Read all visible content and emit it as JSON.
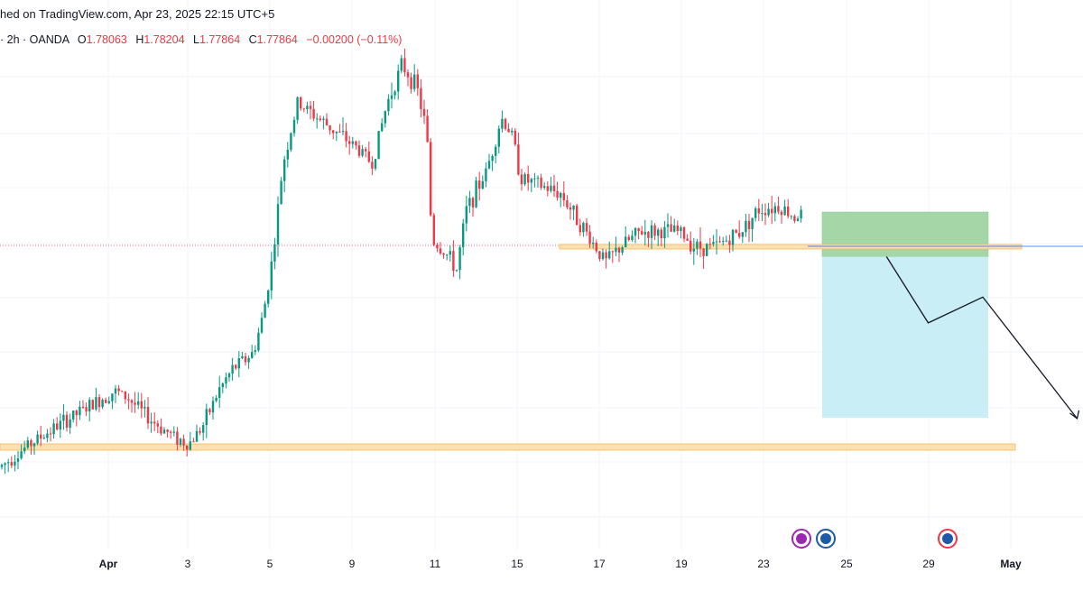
{
  "header": {
    "published_text": "hed on TradingView.com, Apr 23, 2025 22:15 UTC+5"
  },
  "legend": {
    "prefix": "· 2h · OANDA",
    "open_label": "O",
    "open_value": "1.78063",
    "high_label": "H",
    "high_value": "1.78204",
    "low_label": "L",
    "low_value": "1.77864",
    "close_label": "C",
    "close_value": "1.77864",
    "change_value": "−0.00200 (−0.11%)"
  },
  "colors": {
    "up": "#089981",
    "down": "#f23645",
    "profit_zone": "#a5d6a7",
    "loss_zone": "#c9eef5",
    "support_band": "#fce0b0",
    "support_border": "#f7b955",
    "grid": "#f0f3fa",
    "current_price_line": "#f23645",
    "entry_line": "#2962ff"
  },
  "icons": [
    "lightning-event-icon",
    "globe-event-icon",
    "globe-event-icon"
  ],
  "chart_data": {
    "type": "candlestick",
    "x_ticks": [
      {
        "label": "Apr",
        "bold": true
      },
      {
        "label": "3"
      },
      {
        "label": "5"
      },
      {
        "label": "9"
      },
      {
        "label": "11"
      },
      {
        "label": "15"
      },
      {
        "label": "17"
      },
      {
        "label": "19"
      },
      {
        "label": "23"
      },
      {
        "label": "25"
      },
      {
        "label": "29"
      },
      {
        "label": "May",
        "bold": true
      }
    ],
    "price_levels": {
      "last_price": 1.77864,
      "entry": 1.77864
    },
    "trend_path": [
      [
        0.0,
        1.64
      ],
      [
        0.03,
        1.655
      ],
      [
        0.06,
        1.668
      ],
      [
        0.09,
        1.68
      ],
      [
        0.115,
        1.69
      ],
      [
        0.13,
        1.685
      ],
      [
        0.145,
        1.675
      ],
      [
        0.16,
        1.667
      ],
      [
        0.175,
        1.66
      ],
      [
        0.19,
        1.655
      ],
      [
        0.205,
        1.668
      ],
      [
        0.22,
        1.69
      ],
      [
        0.235,
        1.705
      ],
      [
        0.255,
        1.715
      ],
      [
        0.265,
        1.74
      ],
      [
        0.275,
        1.78
      ],
      [
        0.285,
        1.84
      ],
      [
        0.3,
        1.88
      ],
      [
        0.32,
        1.87
      ],
      [
        0.34,
        1.86
      ],
      [
        0.36,
        1.85
      ],
      [
        0.375,
        1.84
      ],
      [
        0.39,
        1.88
      ],
      [
        0.405,
        1.905
      ],
      [
        0.42,
        1.89
      ],
      [
        0.43,
        1.86
      ],
      [
        0.435,
        1.79
      ],
      [
        0.45,
        1.78
      ],
      [
        0.46,
        1.77
      ],
      [
        0.47,
        1.81
      ],
      [
        0.49,
        1.835
      ],
      [
        0.505,
        1.87
      ],
      [
        0.515,
        1.86
      ],
      [
        0.525,
        1.83
      ],
      [
        0.545,
        1.825
      ],
      [
        0.565,
        1.82
      ],
      [
        0.585,
        1.8
      ],
      [
        0.6,
        1.785
      ],
      [
        0.61,
        1.775
      ],
      [
        0.625,
        1.785
      ],
      [
        0.645,
        1.795
      ],
      [
        0.665,
        1.795
      ],
      [
        0.685,
        1.795
      ],
      [
        0.7,
        1.785
      ],
      [
        0.72,
        1.785
      ],
      [
        0.745,
        1.795
      ],
      [
        0.765,
        1.81
      ],
      [
        0.785,
        1.812
      ],
      [
        0.8,
        1.805
      ],
      [
        0.82,
        1.81
      ],
      [
        0.835,
        1.812
      ],
      [
        0.85,
        1.795
      ],
      [
        0.865,
        1.785
      ],
      [
        0.88,
        1.778
      ],
      [
        0.89,
        1.779
      ]
    ],
    "projection": {
      "points": [
        [
          0.893,
          1.7786
        ],
        [
          0.935,
          1.735
        ],
        [
          0.99,
          1.752
        ],
        [
          1.085,
          1.672
        ]
      ],
      "profit_zone": {
        "from": 1.7786,
        "to": 1.808
      },
      "loss_zone": {
        "from": 1.7786,
        "to": 1.6725
      },
      "support_zone": {
        "from": 1.672,
        "to": 1.6735
      },
      "resistance_zone": {
        "from": 1.7786,
        "to": 1.7798
      }
    }
  }
}
